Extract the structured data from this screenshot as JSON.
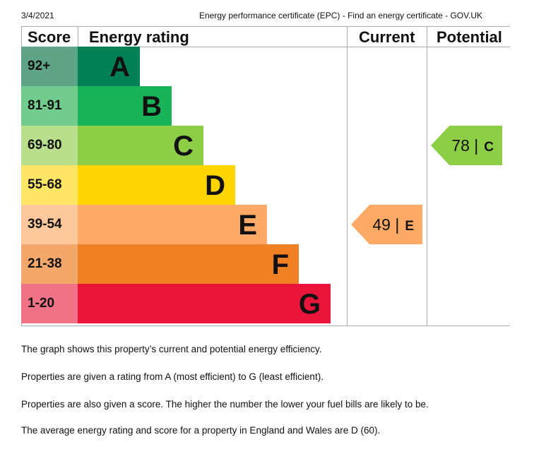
{
  "header": {
    "date": "3/4/2021",
    "title": "Energy performance certificate (EPC) - Find an energy certificate - GOV.UK"
  },
  "table": {
    "columns": {
      "score": "Score",
      "rating": "Energy rating",
      "current": "Current",
      "potential": "Potential"
    },
    "bands": [
      {
        "score": "92+",
        "letter": "A",
        "color": "#008054",
        "score_color": "#5fa487"
      },
      {
        "score": "81-91",
        "letter": "B",
        "color": "#19b459",
        "score_color": "#72cc8e"
      },
      {
        "score": "69-80",
        "letter": "C",
        "color": "#8dce46",
        "score_color": "#badf8c"
      },
      {
        "score": "55-68",
        "letter": "D",
        "color": "#ffd500",
        "score_color": "#ffe566"
      },
      {
        "score": "39-54",
        "letter": "E",
        "color": "#fcaa65",
        "score_color": "#fdc99c"
      },
      {
        "score": "21-38",
        "letter": "F",
        "color": "#ef8023",
        "score_color": "#f4a76a"
      },
      {
        "score": "1-20",
        "letter": "G",
        "color": "#e9153b",
        "score_color": "#f07286"
      }
    ],
    "current": {
      "score": "49 |",
      "letter": "E",
      "color": "#fcaa65"
    },
    "potential": {
      "score": "78 |",
      "letter": "C",
      "color": "#8dce46"
    }
  },
  "paragraphs": [
    "The graph shows this property’s current and potential energy efficiency.",
    "Properties are given a rating from A (most efficient) to G (least efficient).",
    "Properties are also given a score. The higher the number the lower your fuel bills are likely to be.",
    "The average energy rating and score for a property in England and Wales are D (60)."
  ]
}
